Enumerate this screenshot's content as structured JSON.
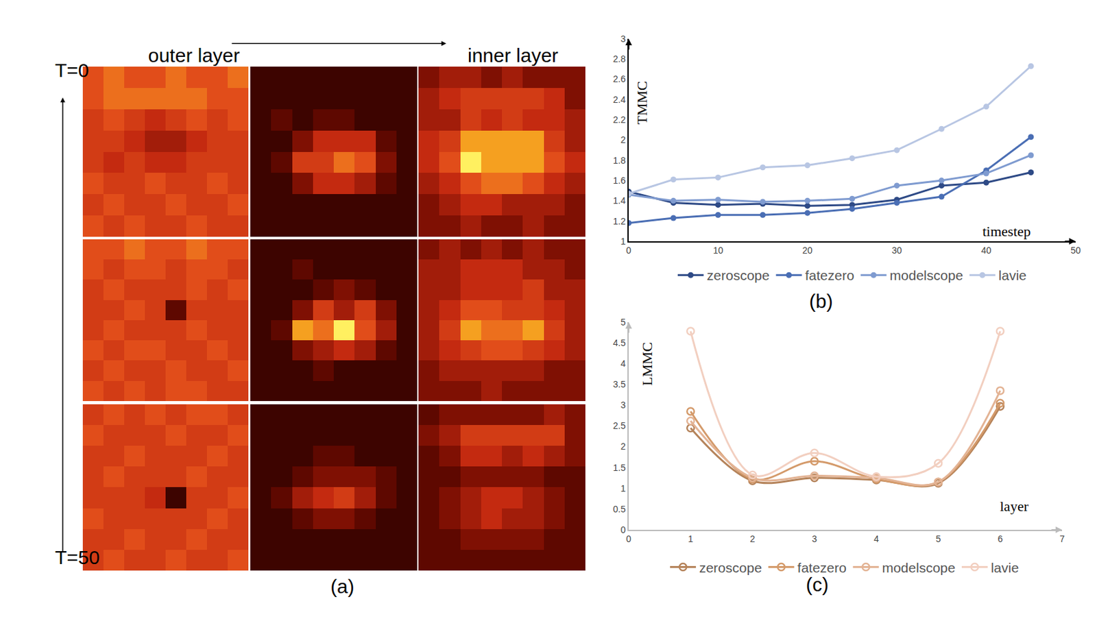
{
  "chart_data": [
    {
      "type": "heatmap",
      "label": "(a)",
      "annotations": [
        "outer layer",
        "inner layer",
        "T=0",
        "T=50"
      ],
      "zlim": [
        0,
        1
      ],
      "tick_labels": false,
      "maps": [
        [
          [
            [
              0.7,
              0.8,
              0.7,
              0.7,
              0.8,
              0.7,
              0.7,
              0.8
            ],
            [
              0.7,
              0.8,
              0.8,
              0.8,
              0.8,
              0.8,
              0.7,
              0.7
            ],
            [
              0.6,
              0.7,
              0.6,
              0.5,
              0.6,
              0.7,
              0.6,
              0.7
            ],
            [
              0.6,
              0.6,
              0.5,
              0.4,
              0.4,
              0.5,
              0.6,
              0.6
            ],
            [
              0.6,
              0.5,
              0.6,
              0.5,
              0.5,
              0.6,
              0.6,
              0.6
            ],
            [
              0.7,
              0.6,
              0.6,
              0.7,
              0.6,
              0.6,
              0.7,
              0.6
            ],
            [
              0.6,
              0.7,
              0.6,
              0.6,
              0.7,
              0.6,
              0.6,
              0.7
            ],
            [
              0.7,
              0.6,
              0.7,
              0.6,
              0.6,
              0.7,
              0.6,
              0.6
            ]
          ],
          [
            [
              0.1,
              0.1,
              0.1,
              0.1,
              0.1,
              0.1,
              0.1,
              0.1
            ],
            [
              0.1,
              0.1,
              0.1,
              0.1,
              0.1,
              0.1,
              0.1,
              0.1
            ],
            [
              0.1,
              0.2,
              0.1,
              0.2,
              0.2,
              0.1,
              0.1,
              0.1
            ],
            [
              0.1,
              0.1,
              0.3,
              0.5,
              0.5,
              0.5,
              0.2,
              0.1
            ],
            [
              0.1,
              0.2,
              0.6,
              0.6,
              0.8,
              0.7,
              0.3,
              0.1
            ],
            [
              0.1,
              0.1,
              0.3,
              0.5,
              0.5,
              0.4,
              0.2,
              0.1
            ],
            [
              0.1,
              0.1,
              0.1,
              0.1,
              0.1,
              0.1,
              0.1,
              0.1
            ],
            [
              0.1,
              0.1,
              0.1,
              0.1,
              0.1,
              0.1,
              0.1,
              0.1
            ]
          ],
          [
            [
              0.3,
              0.4,
              0.4,
              0.3,
              0.4,
              0.3,
              0.3,
              0.3
            ],
            [
              0.4,
              0.5,
              0.6,
              0.6,
              0.6,
              0.6,
              0.5,
              0.3
            ],
            [
              0.4,
              0.4,
              0.6,
              0.5,
              0.6,
              0.5,
              0.5,
              0.4
            ],
            [
              0.5,
              0.6,
              0.9,
              0.9,
              0.9,
              0.9,
              0.6,
              0.4
            ],
            [
              0.5,
              0.7,
              1.0,
              0.9,
              0.9,
              0.9,
              0.7,
              0.5
            ],
            [
              0.4,
              0.5,
              0.7,
              0.8,
              0.8,
              0.7,
              0.5,
              0.4
            ],
            [
              0.3,
              0.4,
              0.5,
              0.5,
              0.4,
              0.4,
              0.4,
              0.3
            ],
            [
              0.3,
              0.3,
              0.4,
              0.3,
              0.3,
              0.4,
              0.3,
              0.3
            ]
          ]
        ],
        [
          [
            [
              0.7,
              0.7,
              0.8,
              0.7,
              0.7,
              0.8,
              0.7,
              0.7
            ],
            [
              0.7,
              0.6,
              0.7,
              0.7,
              0.6,
              0.7,
              0.7,
              0.6
            ],
            [
              0.6,
              0.7,
              0.6,
              0.6,
              0.6,
              0.7,
              0.6,
              0.7
            ],
            [
              0.6,
              0.6,
              0.7,
              0.6,
              0.2,
              0.6,
              0.6,
              0.6
            ],
            [
              0.6,
              0.7,
              0.6,
              0.6,
              0.6,
              0.7,
              0.6,
              0.6
            ],
            [
              0.7,
              0.6,
              0.7,
              0.7,
              0.6,
              0.6,
              0.7,
              0.6
            ],
            [
              0.6,
              0.7,
              0.6,
              0.6,
              0.7,
              0.6,
              0.6,
              0.7
            ],
            [
              0.7,
              0.6,
              0.7,
              0.6,
              0.7,
              0.7,
              0.6,
              0.6
            ]
          ],
          [
            [
              0.1,
              0.1,
              0.1,
              0.1,
              0.1,
              0.1,
              0.1,
              0.1
            ],
            [
              0.1,
              0.1,
              0.2,
              0.1,
              0.1,
              0.1,
              0.1,
              0.1
            ],
            [
              0.1,
              0.1,
              0.1,
              0.2,
              0.3,
              0.2,
              0.1,
              0.1
            ],
            [
              0.1,
              0.1,
              0.3,
              0.6,
              0.4,
              0.6,
              0.3,
              0.1
            ],
            [
              0.1,
              0.2,
              0.9,
              0.8,
              1.0,
              0.7,
              0.4,
              0.1
            ],
            [
              0.1,
              0.1,
              0.3,
              0.4,
              0.5,
              0.4,
              0.2,
              0.1
            ],
            [
              0.1,
              0.1,
              0.1,
              0.2,
              0.1,
              0.1,
              0.1,
              0.1
            ],
            [
              0.1,
              0.1,
              0.1,
              0.1,
              0.1,
              0.1,
              0.1,
              0.1
            ]
          ],
          [
            [
              0.3,
              0.4,
              0.3,
              0.4,
              0.3,
              0.4,
              0.3,
              0.3
            ],
            [
              0.4,
              0.4,
              0.5,
              0.5,
              0.5,
              0.4,
              0.4,
              0.3
            ],
            [
              0.4,
              0.4,
              0.5,
              0.5,
              0.5,
              0.6,
              0.4,
              0.4
            ],
            [
              0.4,
              0.5,
              0.7,
              0.7,
              0.6,
              0.6,
              0.5,
              0.4
            ],
            [
              0.4,
              0.6,
              0.9,
              0.8,
              0.8,
              0.9,
              0.6,
              0.4
            ],
            [
              0.4,
              0.5,
              0.6,
              0.7,
              0.7,
              0.6,
              0.5,
              0.4
            ],
            [
              0.3,
              0.4,
              0.4,
              0.4,
              0.4,
              0.4,
              0.3,
              0.3
            ],
            [
              0.3,
              0.3,
              0.3,
              0.4,
              0.3,
              0.3,
              0.3,
              0.3
            ]
          ]
        ],
        [
          [
            [
              0.6,
              0.7,
              0.6,
              0.7,
              0.6,
              0.7,
              0.7,
              0.6
            ],
            [
              0.7,
              0.6,
              0.6,
              0.6,
              0.7,
              0.6,
              0.6,
              0.7
            ],
            [
              0.6,
              0.6,
              0.7,
              0.6,
              0.6,
              0.6,
              0.7,
              0.6
            ],
            [
              0.6,
              0.7,
              0.6,
              0.6,
              0.6,
              0.7,
              0.6,
              0.6
            ],
            [
              0.6,
              0.6,
              0.6,
              0.5,
              0.1,
              0.6,
              0.6,
              0.7
            ],
            [
              0.7,
              0.6,
              0.6,
              0.6,
              0.6,
              0.6,
              0.7,
              0.6
            ],
            [
              0.6,
              0.6,
              0.7,
              0.6,
              0.6,
              0.7,
              0.6,
              0.6
            ],
            [
              0.6,
              0.7,
              0.6,
              0.6,
              0.7,
              0.6,
              0.6,
              0.7
            ]
          ],
          [
            [
              0.1,
              0.1,
              0.1,
              0.1,
              0.1,
              0.1,
              0.1,
              0.1
            ],
            [
              0.1,
              0.1,
              0.1,
              0.1,
              0.1,
              0.1,
              0.1,
              0.1
            ],
            [
              0.1,
              0.1,
              0.1,
              0.2,
              0.2,
              0.1,
              0.1,
              0.1
            ],
            [
              0.1,
              0.1,
              0.2,
              0.3,
              0.3,
              0.3,
              0.2,
              0.1
            ],
            [
              0.1,
              0.2,
              0.4,
              0.5,
              0.6,
              0.4,
              0.2,
              0.1
            ],
            [
              0.1,
              0.1,
              0.2,
              0.3,
              0.3,
              0.2,
              0.1,
              0.1
            ],
            [
              0.1,
              0.1,
              0.1,
              0.1,
              0.1,
              0.1,
              0.1,
              0.1
            ],
            [
              0.1,
              0.1,
              0.1,
              0.1,
              0.1,
              0.1,
              0.1,
              0.1
            ]
          ],
          [
            [
              0.2,
              0.3,
              0.3,
              0.3,
              0.3,
              0.3,
              0.4,
              0.3
            ],
            [
              0.3,
              0.4,
              0.6,
              0.6,
              0.6,
              0.6,
              0.6,
              0.3
            ],
            [
              0.2,
              0.3,
              0.5,
              0.5,
              0.4,
              0.5,
              0.4,
              0.3
            ],
            [
              0.2,
              0.2,
              0.3,
              0.3,
              0.3,
              0.3,
              0.2,
              0.2
            ],
            [
              0.2,
              0.3,
              0.4,
              0.5,
              0.5,
              0.4,
              0.3,
              0.2
            ],
            [
              0.2,
              0.3,
              0.4,
              0.5,
              0.4,
              0.4,
              0.3,
              0.2
            ],
            [
              0.2,
              0.2,
              0.3,
              0.3,
              0.3,
              0.3,
              0.2,
              0.2
            ],
            [
              0.2,
              0.2,
              0.2,
              0.2,
              0.2,
              0.2,
              0.2,
              0.2
            ]
          ]
        ]
      ]
    },
    {
      "type": "line",
      "label": "(b)",
      "xlabel": "timestep",
      "ylabel": "TMMC",
      "x": [
        0,
        5,
        10,
        15,
        20,
        25,
        30,
        35,
        40,
        45
      ],
      "xlim": [
        0,
        50
      ],
      "xticks": [
        0,
        10,
        20,
        30,
        40,
        50
      ],
      "ylim": [
        1,
        3
      ],
      "yticks": [
        1,
        1.2,
        1.4,
        1.6,
        1.8,
        2,
        2.2,
        2.4,
        2.6,
        2.8,
        3
      ],
      "grid": false,
      "legend": "bottom",
      "marker": "circle",
      "line_style": "straight",
      "series": [
        {
          "name": "zeroscope",
          "color": "#2e4a86",
          "values": [
            1.49,
            1.38,
            1.36,
            1.37,
            1.35,
            1.36,
            1.41,
            1.55,
            1.58,
            1.68
          ]
        },
        {
          "name": "fatezero",
          "color": "#4a6eb4",
          "values": [
            1.18,
            1.23,
            1.26,
            1.26,
            1.28,
            1.32,
            1.38,
            1.44,
            1.7,
            2.03
          ]
        },
        {
          "name": "modelscope",
          "color": "#7f9bd0",
          "values": [
            1.46,
            1.4,
            1.41,
            1.39,
            1.4,
            1.42,
            1.55,
            1.6,
            1.67,
            1.85
          ]
        },
        {
          "name": "lavie",
          "color": "#b8c6e3",
          "values": [
            1.47,
            1.61,
            1.63,
            1.73,
            1.75,
            1.82,
            1.9,
            2.11,
            2.33,
            2.73
          ]
        }
      ]
    },
    {
      "type": "line",
      "label": "(c)",
      "xlabel": "layer",
      "ylabel": "LMMC",
      "x": [
        1,
        2,
        3,
        4,
        5,
        6
      ],
      "xlim": [
        0,
        7
      ],
      "xticks": [
        0,
        1,
        2,
        3,
        4,
        5,
        6,
        7
      ],
      "ylim": [
        0,
        5
      ],
      "yticks": [
        0,
        0.5,
        1,
        1.5,
        2,
        2.5,
        3,
        3.5,
        4,
        4.5,
        5
      ],
      "grid": false,
      "legend": "bottom",
      "marker": "open-circle",
      "line_style": "smooth",
      "series": [
        {
          "name": "zeroscope",
          "color": "#b5835a",
          "values": [
            2.45,
            1.18,
            1.25,
            1.2,
            1.12,
            2.97
          ]
        },
        {
          "name": "fatezero",
          "color": "#d49a6a",
          "values": [
            2.85,
            1.22,
            1.65,
            1.22,
            1.15,
            3.05
          ]
        },
        {
          "name": "modelscope",
          "color": "#e3b394",
          "values": [
            2.62,
            1.25,
            1.3,
            1.25,
            1.15,
            3.35
          ]
        },
        {
          "name": "lavie",
          "color": "#f2cfc0",
          "values": [
            4.78,
            1.32,
            1.85,
            1.28,
            1.6,
            4.78
          ]
        }
      ]
    }
  ]
}
